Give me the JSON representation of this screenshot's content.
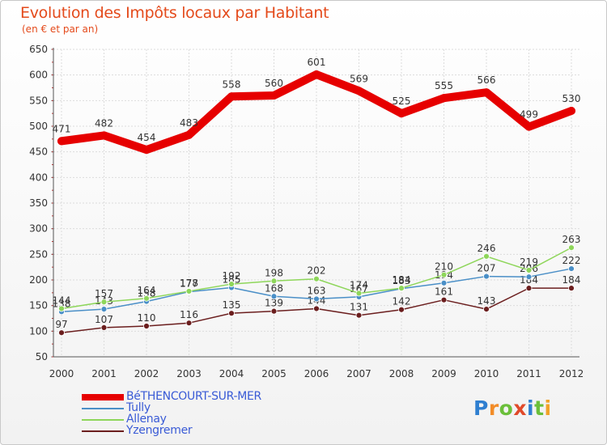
{
  "chart_data": {
    "type": "line",
    "title": "Evolution des Impôts locaux par Habitant",
    "subtitle": "(en € et par an)",
    "xlabel": "",
    "ylabel": "",
    "ylim": [
      50,
      650
    ],
    "y_ticks": [
      50,
      100,
      150,
      200,
      250,
      300,
      350,
      400,
      450,
      500,
      550,
      600,
      650
    ],
    "categories": [
      "2000",
      "2001",
      "2002",
      "2003",
      "2004",
      "2005",
      "2006",
      "2007",
      "2008",
      "2009",
      "2010",
      "2011",
      "2012"
    ],
    "grid": true,
    "legend_position": "bottom-left",
    "series": [
      {
        "name": "BéTHENCOURT-SUR-MER",
        "color": "#e60000",
        "values": [
          471,
          482,
          454,
          483,
          558,
          560,
          601,
          569,
          525,
          555,
          566,
          499,
          530
        ],
        "labels": [
          "471",
          "482",
          "454",
          "483",
          "558",
          "560",
          "601",
          "569",
          "525",
          "555",
          "566",
          "499",
          "530"
        ]
      },
      {
        "name": "Tully",
        "color": "#4a8fc7",
        "values": [
          138,
          143,
          158,
          177,
          185,
          168,
          163,
          167,
          183,
          194,
          207,
          206,
          222
        ],
        "labels": [
          "138",
          "143",
          "158",
          "177",
          "185",
          "168",
          "163",
          "167",
          "183",
          "194",
          "207",
          "206",
          "222"
        ]
      },
      {
        "name": "Allenay",
        "color": "#8ed65a",
        "values": [
          144,
          157,
          164,
          178,
          192,
          198,
          202,
          174,
          184,
          210,
          246,
          219,
          263
        ],
        "labels": [
          "144",
          "157",
          "164",
          "178",
          "192",
          "198",
          "202",
          "174",
          "184",
          "210",
          "246",
          "219",
          "263"
        ]
      },
      {
        "name": "Yzengremer",
        "color": "#6b1e1e",
        "values": [
          97,
          107,
          110,
          116,
          135,
          139,
          144,
          131,
          142,
          161,
          143,
          184,
          184
        ],
        "labels": [
          "97",
          "107",
          "110",
          "116",
          "135",
          "139",
          "144",
          "131",
          "142",
          "161",
          "143",
          "184",
          "184"
        ]
      }
    ]
  },
  "branding": {
    "logo_letters": [
      "P",
      "r",
      "o",
      "x",
      "i",
      "t",
      "i"
    ],
    "logo_colors": [
      "#2f7fd0",
      "#f28c28",
      "#6bbf3a",
      "#e04a2a",
      "#2f7fd0",
      "#6bbf3a",
      "#f2a228"
    ]
  }
}
